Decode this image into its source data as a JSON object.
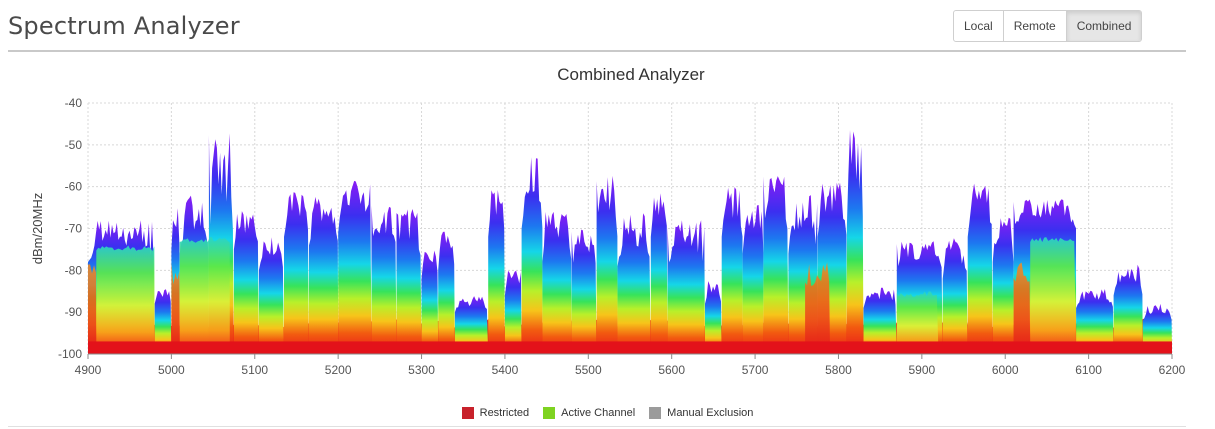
{
  "header": {
    "title": "Spectrum Analyzer"
  },
  "view_toggle": {
    "options": [
      "Local",
      "Remote",
      "Combined"
    ],
    "selected": "Combined"
  },
  "chart_data": {
    "type": "heatmap",
    "title": "Combined  Analyzer",
    "xlabel": "",
    "ylabel": "dBm/20MHz",
    "xlim": [
      4900,
      6200
    ],
    "ylim": [
      -100,
      -40
    ],
    "x_ticks": [
      4900,
      5000,
      5100,
      5200,
      5300,
      5400,
      5500,
      5600,
      5700,
      5800,
      5900,
      6000,
      6100,
      6200
    ],
    "y_ticks": [
      -40,
      -50,
      -60,
      -70,
      -80,
      -90,
      -100
    ],
    "grid": true,
    "noise_floor_dbm": -96,
    "legend": [
      {
        "name": "Restricted",
        "color": "#c8212b"
      },
      {
        "name": "Active Channel",
        "color": "#7ed321"
      },
      {
        "name": "Manual Exclusion",
        "color": "#9b9b9b"
      }
    ],
    "legend_position": "bottom",
    "restricted_ranges": [
      [
        4900,
        4910
      ],
      [
        5000,
        5010
      ],
      [
        5760,
        5790
      ],
      [
        6010,
        6030
      ]
    ],
    "active_channel_ranges": [
      [
        4910,
        4980
      ],
      [
        5010,
        5070
      ],
      [
        5870,
        5920
      ],
      [
        6030,
        6085
      ]
    ],
    "signals": [
      {
        "start": 4900,
        "end": 4980,
        "peak": -68,
        "body": -78
      },
      {
        "start": 4980,
        "end": 5000,
        "peak": -84,
        "body": -88
      },
      {
        "start": 5000,
        "end": 5010,
        "peak": -65,
        "body": -75
      },
      {
        "start": 5010,
        "end": 5045,
        "peak": -62,
        "body": -76
      },
      {
        "start": 5045,
        "end": 5075,
        "peak": -47,
        "body": -73
      },
      {
        "start": 5075,
        "end": 5105,
        "peak": -65,
        "body": -75
      },
      {
        "start": 5105,
        "end": 5135,
        "peak": -72,
        "body": -80
      },
      {
        "start": 5135,
        "end": 5165,
        "peak": -60,
        "body": -72
      },
      {
        "start": 5165,
        "end": 5200,
        "peak": -62,
        "body": -74
      },
      {
        "start": 5200,
        "end": 5240,
        "peak": -58,
        "body": -71
      },
      {
        "start": 5240,
        "end": 5270,
        "peak": -64,
        "body": -76
      },
      {
        "start": 5270,
        "end": 5300,
        "peak": -65,
        "body": -78
      },
      {
        "start": 5300,
        "end": 5320,
        "peak": -75,
        "body": -82
      },
      {
        "start": 5320,
        "end": 5340,
        "peak": -70,
        "body": -80
      },
      {
        "start": 5340,
        "end": 5380,
        "peak": -86,
        "body": -90
      },
      {
        "start": 5380,
        "end": 5400,
        "peak": -60,
        "body": -72
      },
      {
        "start": 5400,
        "end": 5420,
        "peak": -80,
        "body": -86
      },
      {
        "start": 5420,
        "end": 5445,
        "peak": -52,
        "body": -70
      },
      {
        "start": 5445,
        "end": 5480,
        "peak": -66,
        "body": -78
      },
      {
        "start": 5480,
        "end": 5510,
        "peak": -70,
        "body": -80
      },
      {
        "start": 5510,
        "end": 5535,
        "peak": -57,
        "body": -72
      },
      {
        "start": 5535,
        "end": 5575,
        "peak": -66,
        "body": -79
      },
      {
        "start": 5575,
        "end": 5595,
        "peak": -60,
        "body": -72
      },
      {
        "start": 5595,
        "end": 5640,
        "peak": -68,
        "body": -80
      },
      {
        "start": 5640,
        "end": 5660,
        "peak": -82,
        "body": -88
      },
      {
        "start": 5660,
        "end": 5685,
        "peak": -60,
        "body": -72
      },
      {
        "start": 5685,
        "end": 5710,
        "peak": -64,
        "body": -76
      },
      {
        "start": 5710,
        "end": 5740,
        "peak": -57,
        "body": -72
      },
      {
        "start": 5740,
        "end": 5775,
        "peak": -62,
        "body": -76
      },
      {
        "start": 5775,
        "end": 5810,
        "peak": -58,
        "body": -72
      },
      {
        "start": 5810,
        "end": 5830,
        "peak": -46,
        "body": -70
      },
      {
        "start": 5830,
        "end": 5870,
        "peak": -84,
        "body": -89
      },
      {
        "start": 5870,
        "end": 5925,
        "peak": -73,
        "body": -80
      },
      {
        "start": 5925,
        "end": 5955,
        "peak": -72,
        "body": -82
      },
      {
        "start": 5955,
        "end": 5985,
        "peak": -58,
        "body": -72
      },
      {
        "start": 5985,
        "end": 6010,
        "peak": -66,
        "body": -78
      },
      {
        "start": 6010,
        "end": 6085,
        "peak": -63,
        "body": -70
      },
      {
        "start": 6085,
        "end": 6130,
        "peak": -84,
        "body": -89
      },
      {
        "start": 6130,
        "end": 6165,
        "peak": -78,
        "body": -86
      },
      {
        "start": 6165,
        "end": 6200,
        "peak": -88,
        "body": -92
      }
    ]
  }
}
